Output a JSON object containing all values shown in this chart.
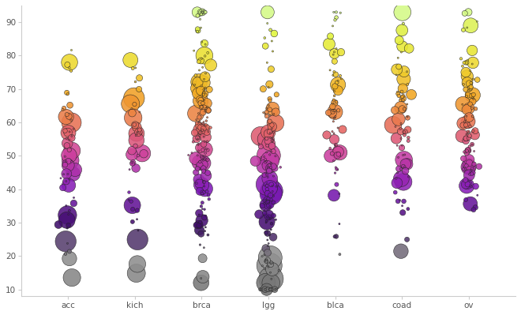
{
  "categories": [
    "acc",
    "kich",
    "brca",
    "lgg",
    "blca",
    "coad",
    "ov"
  ],
  "x_positions": [
    1,
    2,
    3,
    4,
    5,
    6,
    7
  ],
  "ylim": [
    8,
    95
  ],
  "xlim": [
    0.3,
    7.7
  ],
  "yticks": [
    10,
    20,
    30,
    40,
    50,
    60,
    70,
    80,
    90
  ],
  "background_color": "#ffffff",
  "shadow_color": "#999999",
  "shadow_alpha": 0.3,
  "bubble_edge_color": "#222222",
  "bubble_edge_width": 0.4
}
